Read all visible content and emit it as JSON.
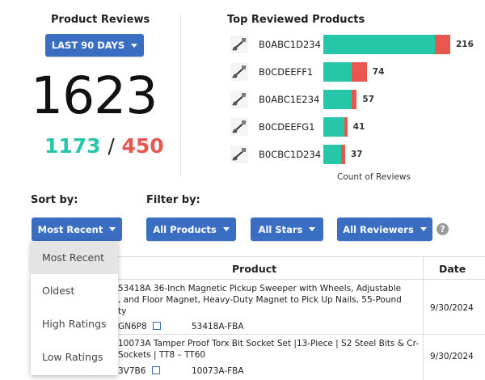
{
  "reviews_panel": {
    "title": "Product Reviews",
    "range_label": "LAST 90 DAYS",
    "total": "1623",
    "positive": "1173",
    "separator": "/",
    "negative": "450"
  },
  "top_products": {
    "title": "Top Reviewed Products",
    "xlabel": "Count of Reviews",
    "colors": {
      "positive": "#26c6a8",
      "negative": "#e8574f"
    }
  },
  "chart_data": {
    "type": "bar",
    "orientation": "horizontal",
    "stacked": true,
    "title": "Top Reviewed Products",
    "xlabel": "Count of Reviews",
    "categories": [
      "B0ABC1D234",
      "B0CDEEFF1",
      "B0ABC1E234",
      "B0CDEEFG1",
      "B0CBC1D234"
    ],
    "totals": [
      216,
      74,
      57,
      41,
      37
    ],
    "series": [
      {
        "values": [
          190,
          48,
          48,
          36,
          30
        ],
        "color": "#26c6a8"
      },
      {
        "values": [
          26,
          26,
          9,
          5,
          7
        ],
        "color": "#e8574f"
      }
    ]
  },
  "controls": {
    "sort_label": "Sort by:",
    "filter_label": "Filter by:",
    "sort_value": "Most Recent",
    "filter_products": "All Products",
    "filter_stars": "All Stars",
    "filter_reviewers": "All Reviewers",
    "help": "?"
  },
  "sort_menu": {
    "items": [
      "Most Recent",
      "Oldest",
      "High Ratings",
      "Low Ratings"
    ]
  },
  "table": {
    "col_product": "Product",
    "col_date": "Date",
    "rows": [
      {
        "line1": "53418A 36-Inch Magnetic Pickup Sweeper with Wheels, Adjustable",
        "line2": ", and Floor Magnet, Heavy-Duty Magnet to Pick Up Nails, 55-Pound",
        "line3": "ty",
        "asin": "GN6P8",
        "sku": "53418A-FBA",
        "date": "9/30/2024"
      },
      {
        "line1": "10073A Tamper Proof Torx Bit Socket Set |13-Piece | S2 Steel Bits & Cr-",
        "line2": " Sockets | TT8 – TT60",
        "asin": "3V7B6",
        "sku": "10073A-FBA",
        "date": "9/30/2024"
      }
    ]
  }
}
